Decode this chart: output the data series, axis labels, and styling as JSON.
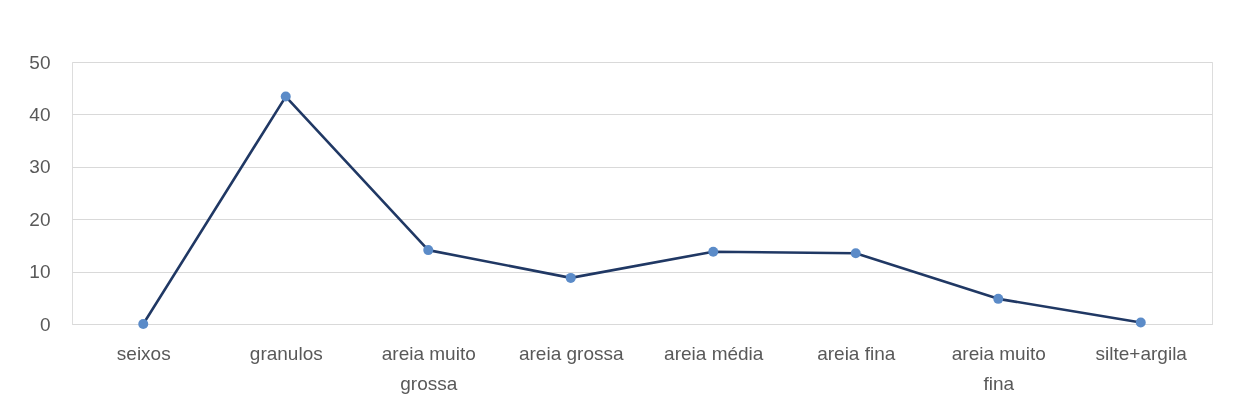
{
  "chart_data": {
    "type": "line",
    "categories": [
      "seixos",
      "granulos",
      "areia muito grossa",
      "areia grossa",
      "areia média",
      "areia fina",
      "areia muito fina",
      "silte+argila"
    ],
    "series": [
      {
        "color": "#203864",
        "colors": [
          "#5b8bc8",
          "#5b8bc8",
          "#5b8bc8",
          "#5b8bc8",
          "#5b8bc8",
          "#5b8bc8",
          "#5b8bc8",
          "#5b8bc8"
        ],
        "values": [
          0,
          43.4,
          14.1,
          8.8,
          13.8,
          13.5,
          4.8,
          0.3
        ]
      }
    ],
    "ylim": [
      0,
      50
    ],
    "yticks": [
      0,
      10,
      20,
      30,
      40,
      50
    ],
    "grid": "y",
    "marker": "circle",
    "line_style": "solid"
  }
}
